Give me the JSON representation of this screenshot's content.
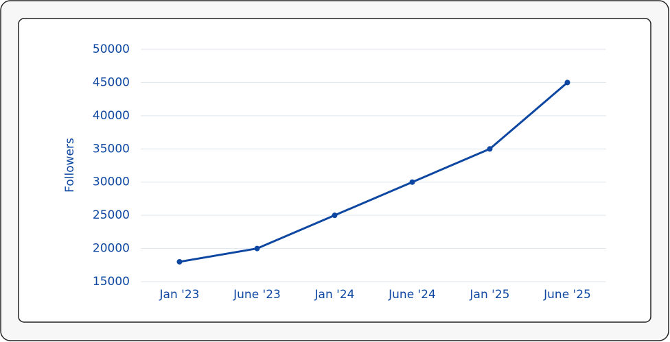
{
  "chart_data": {
    "type": "line",
    "y_label": "Followers",
    "categories": [
      "Jan '23",
      "June '23",
      "Jan '24",
      "June '24",
      "Jan '25",
      "June '25"
    ],
    "values": [
      18000,
      20000,
      25000,
      30000,
      35000,
      45000
    ],
    "color": "#0d47a1",
    "ylim": [
      15000,
      50000
    ],
    "yticks": [
      15000,
      20000,
      25000,
      30000,
      35000,
      40000,
      45000,
      50000
    ],
    "grid": true
  }
}
